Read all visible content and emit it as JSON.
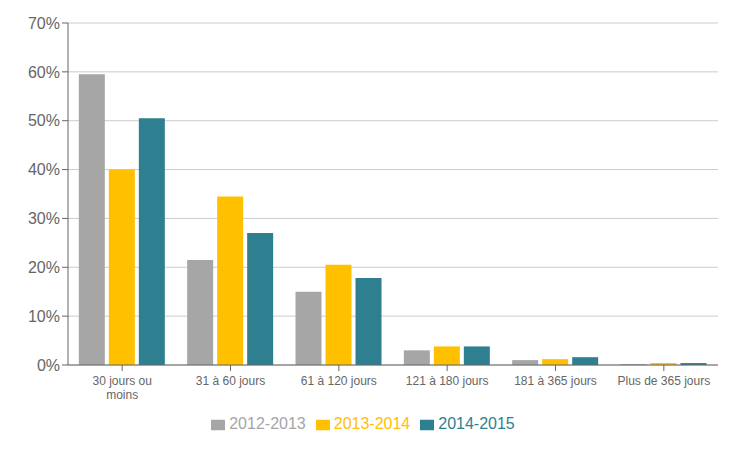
{
  "chart_data": {
    "type": "bar",
    "categories": [
      "30 jours ou\nmoins",
      "31 à 60 jours",
      "61 à 120 jours",
      "121 à 180 jours",
      "181 à 365 jours",
      "Plus de 365 jours"
    ],
    "series": [
      {
        "name": "2012-2013",
        "color": "#a6a6a6",
        "values": [
          0.595,
          0.215,
          0.15,
          0.03,
          0.01,
          0.002
        ]
      },
      {
        "name": "2013-2014",
        "color": "#ffc000",
        "values": [
          0.4,
          0.345,
          0.205,
          0.038,
          0.012,
          0.004
        ]
      },
      {
        "name": "2014-2015",
        "color": "#2e7f8f",
        "values": [
          0.505,
          0.27,
          0.178,
          0.038,
          0.016,
          0.004
        ]
      }
    ],
    "ylim": [
      0,
      0.7
    ],
    "yticks": [
      {
        "value": 0.0,
        "label": "0%"
      },
      {
        "value": 0.1,
        "label": "10%"
      },
      {
        "value": 0.2,
        "label": "20%"
      },
      {
        "value": 0.3,
        "label": "30%"
      },
      {
        "value": 0.4,
        "label": "40%"
      },
      {
        "value": 0.5,
        "label": "50%"
      },
      {
        "value": 0.6,
        "label": "60%"
      },
      {
        "value": 0.7,
        "label": "70%"
      }
    ],
    "grid": true,
    "legend": "bottom"
  }
}
